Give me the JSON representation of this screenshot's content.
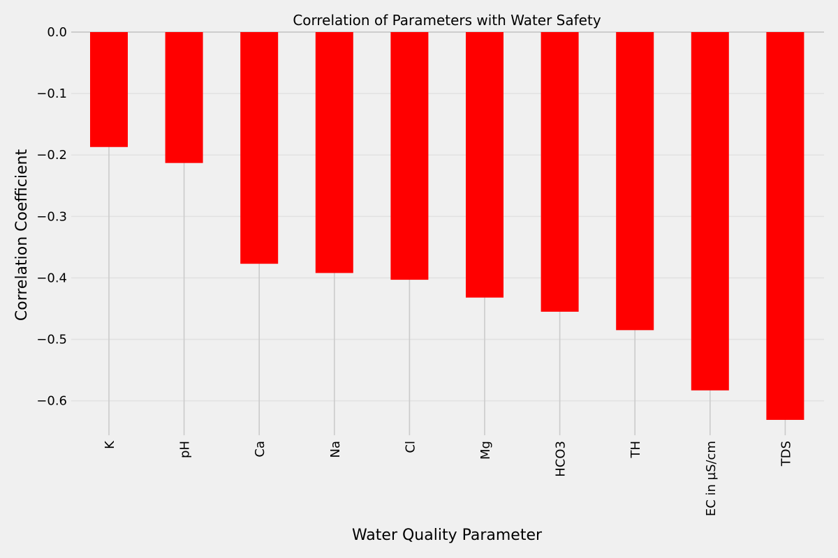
{
  "chart_data": {
    "type": "bar",
    "title": "Correlation of Parameters with Water Safety",
    "xlabel": "Water Quality Parameter",
    "ylabel": "Correlation Coefficient",
    "categories": [
      "K",
      "pH",
      "Ca",
      "Na",
      "Cl",
      "Mg",
      "HCO3",
      "TH",
      "EC in µS/cm",
      "TDS"
    ],
    "values": [
      -0.187,
      -0.213,
      -0.377,
      -0.392,
      -0.403,
      -0.432,
      -0.455,
      -0.485,
      -0.583,
      -0.631
    ],
    "yticks": [
      "0.0",
      "−0.1",
      "−0.2",
      "−0.3",
      "−0.4",
      "−0.5",
      "−0.6"
    ],
    "ytick_values": [
      0.0,
      -0.1,
      -0.2,
      -0.3,
      -0.4,
      -0.5,
      -0.6
    ],
    "ylim": [
      -0.656,
      0.0
    ],
    "bar_color": "#ff0000",
    "background_color": "#f0f0f0",
    "grid": true,
    "legend": false
  }
}
